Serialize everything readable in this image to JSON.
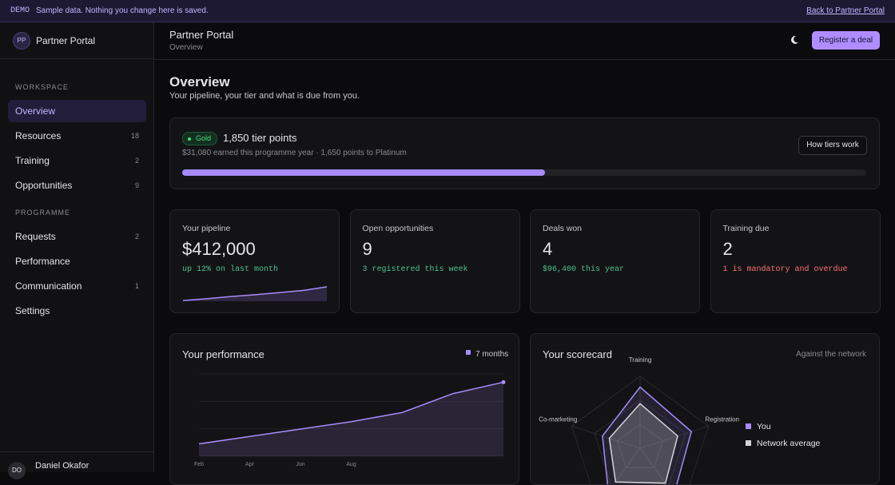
{
  "banner": {
    "tag": "DEMO",
    "text": "Sample data. Nothing you change here is saved.",
    "link": "Back to Partner Portal"
  },
  "sidebar": {
    "avatar": "PP",
    "title": "Partner Portal",
    "sections": [
      {
        "heading": "WORKSPACE",
        "items": [
          {
            "label": "Overview"
          },
          {
            "label": "Resources",
            "count": 18
          },
          {
            "label": "Training",
            "count": 2
          },
          {
            "label": "Opportunities",
            "count": 9
          }
        ]
      },
      {
        "heading": "PROGRAMME",
        "items": [
          {
            "label": "Requests",
            "count": 2
          },
          {
            "label": "Performance"
          },
          {
            "label": "Communication",
            "count": 1
          },
          {
            "label": "Settings"
          }
        ]
      }
    ],
    "user": {
      "initials": "DO",
      "name": "Daniel Okafor"
    }
  },
  "header": {
    "title": "Partner Portal",
    "subtitle": "Overview",
    "button": "Register a deal"
  },
  "overview": {
    "title": "Overview",
    "subtitle": "Your pipeline, your tier and what is due from you."
  },
  "tier": {
    "badge": "Gold",
    "points": "1,850 tier points",
    "detail": "$31,080 earned this programme year · 1,650 points to Platinum",
    "button": "How tiers work",
    "progress": 53
  },
  "kpis": [
    {
      "label": "Your pipeline",
      "value": "$412,000",
      "note": "up 12% on last month",
      "tone": "#4fc08d",
      "sparkline": [
        22,
        27,
        33,
        38,
        44,
        50,
        60
      ]
    },
    {
      "label": "Open opportunities",
      "value": "9",
      "note": "3 registered this week",
      "tone": "#4fc08d"
    },
    {
      "label": "Deals won",
      "value": "4",
      "note": "$96,400 this year",
      "tone": "#4fc08d"
    },
    {
      "label": "Training due",
      "value": "2",
      "note": "1 is mandatory and overdue",
      "tone": "#f87171"
    }
  ],
  "performance": {
    "title": "Your performance",
    "legend": "7 months",
    "chart": {
      "type": "line",
      "categories": [
        "Feb",
        "Apr",
        "Jun",
        "Aug",
        null,
        null,
        null
      ],
      "values": [
        15,
        24,
        33,
        42,
        53,
        76,
        90
      ],
      "ylim": [
        0,
        100
      ],
      "color": "#a78bfa"
    }
  },
  "scorecard": {
    "title": "Your scorecard",
    "note": "Against the network",
    "chart": {
      "type": "radar",
      "categories": [
        "Training",
        "Registration",
        null,
        null,
        "Co-marketing"
      ],
      "rlim": [
        0,
        100
      ],
      "series": [
        {
          "name": "You",
          "color": "#a78bfa",
          "values": [
            85,
            75,
            80,
            75,
            55
          ]
        },
        {
          "name": "Network average",
          "color": "#d4d4d8",
          "values": [
            62,
            55,
            60,
            58,
            45
          ]
        }
      ]
    }
  }
}
